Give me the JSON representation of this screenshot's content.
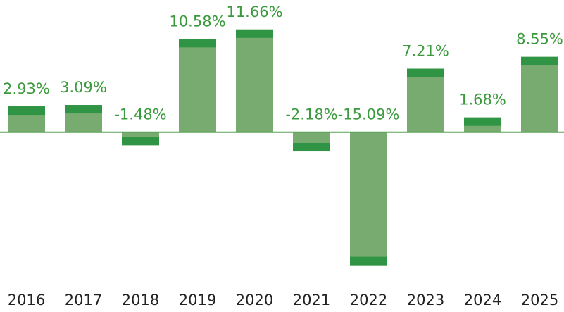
{
  "chart_data": {
    "type": "bar",
    "categories": [
      "2016",
      "2017",
      "2018",
      "2019",
      "2020",
      "2021",
      "2022",
      "2023",
      "2024",
      "2025"
    ],
    "values": [
      2.93,
      3.09,
      -1.48,
      10.58,
      11.66,
      -2.18,
      -15.09,
      7.21,
      1.68,
      8.55
    ],
    "value_labels": [
      "2.93%",
      "3.09%",
      "-1.48%",
      "10.58%",
      "11.66%",
      "-2.18%",
      "-15.09%",
      "7.21%",
      "1.68%",
      "8.55%"
    ],
    "color": "#78ab6f",
    "ylim": [
      -16,
      15
    ]
  }
}
